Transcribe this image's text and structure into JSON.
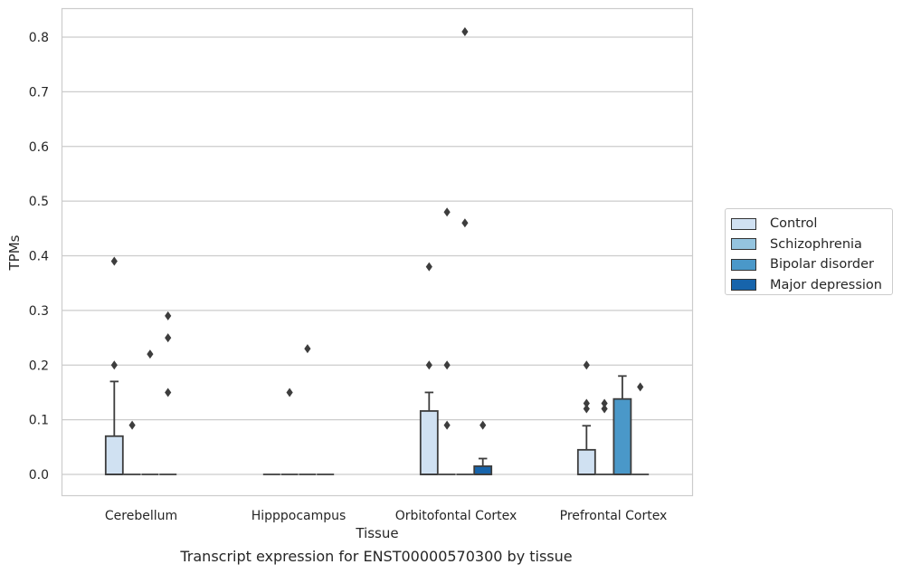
{
  "caption": "Transcript expression for ENST00000570300 by tissue",
  "legend": {
    "items": [
      {
        "label": "Control",
        "color": "#d0e1f2"
      },
      {
        "label": "Schizophrenia",
        "color": "#94c4df"
      },
      {
        "label": "Bipolar disorder",
        "color": "#4a98c9"
      },
      {
        "label": "Major depression",
        "color": "#1764ab"
      }
    ]
  },
  "chart_data": {
    "type": "box",
    "xlabel": "Tissue",
    "ylabel": "TPMs",
    "ylim": [
      -0.04,
      0.85
    ],
    "yticks": [
      0.0,
      0.1,
      0.2,
      0.3,
      0.4,
      0.5,
      0.6,
      0.7,
      0.8
    ],
    "ytick_labels": [
      "0.0",
      "0.1",
      "0.2",
      "0.3",
      "0.4",
      "0.5",
      "0.6",
      "0.7",
      "0.8"
    ],
    "grid": "horizontal",
    "legend_position": "right",
    "categories": [
      "Cerebellum",
      "Hipppocampus",
      "Orbitofontal Cortex",
      "Prefrontal Cortex"
    ],
    "series": [
      {
        "name": "Control",
        "color": "#d0e1f2",
        "boxes": [
          {
            "q1": 0,
            "median": 0,
            "q3": 0.07,
            "whisker_low": 0,
            "whisker_high": 0.17,
            "outliers": [
              0.2,
              0.39
            ]
          },
          {
            "q1": 0,
            "median": 0,
            "q3": 0,
            "whisker_low": 0,
            "whisker_high": 0,
            "outliers": []
          },
          {
            "q1": 0,
            "median": 0,
            "q3": 0.116,
            "whisker_low": 0,
            "whisker_high": 0.15,
            "outliers": [
              0.2,
              0.38
            ]
          },
          {
            "q1": 0,
            "median": 0,
            "q3": 0.045,
            "whisker_low": 0,
            "whisker_high": 0.089,
            "outliers": [
              0.12,
              0.13,
              0.2
            ]
          }
        ]
      },
      {
        "name": "Schizophrenia",
        "color": "#94c4df",
        "boxes": [
          {
            "q1": 0,
            "median": 0,
            "q3": 0,
            "whisker_low": 0,
            "whisker_high": 0,
            "outliers": [
              0.09
            ]
          },
          {
            "q1": 0,
            "median": 0,
            "q3": 0,
            "whisker_low": 0,
            "whisker_high": 0,
            "outliers": [
              0.15
            ]
          },
          {
            "q1": 0,
            "median": 0,
            "q3": 0,
            "whisker_low": 0,
            "whisker_high": 0,
            "outliers": [
              0.09,
              0.2,
              0.48
            ]
          },
          {
            "q1": 0,
            "median": 0,
            "q3": 0,
            "whisker_low": 0,
            "whisker_high": 0,
            "outliers": [
              0.12,
              0.13
            ]
          }
        ]
      },
      {
        "name": "Bipolar disorder",
        "color": "#4a98c9",
        "boxes": [
          {
            "q1": 0,
            "median": 0,
            "q3": 0,
            "whisker_low": 0,
            "whisker_high": 0,
            "outliers": [
              0.22
            ]
          },
          {
            "q1": 0,
            "median": 0,
            "q3": 0,
            "whisker_low": 0,
            "whisker_high": 0,
            "outliers": [
              0.23
            ]
          },
          {
            "q1": 0,
            "median": 0,
            "q3": 0,
            "whisker_low": 0,
            "whisker_high": 0,
            "outliers": [
              0.46,
              0.81
            ]
          },
          {
            "q1": 0,
            "median": 0,
            "q3": 0.138,
            "whisker_low": 0,
            "whisker_high": 0.18,
            "outliers": []
          }
        ]
      },
      {
        "name": "Major depression",
        "color": "#1764ab",
        "boxes": [
          {
            "q1": 0,
            "median": 0,
            "q3": 0,
            "whisker_low": 0,
            "whisker_high": 0,
            "outliers": [
              0.15,
              0.25,
              0.29
            ]
          },
          {
            "q1": 0,
            "median": 0,
            "q3": 0,
            "whisker_low": 0,
            "whisker_high": 0,
            "outliers": []
          },
          {
            "q1": 0,
            "median": 0,
            "q3": 0.015,
            "whisker_low": 0,
            "whisker_high": 0.029,
            "outliers": [
              0.09
            ]
          },
          {
            "q1": 0,
            "median": 0,
            "q3": 0,
            "whisker_low": 0,
            "whisker_high": 0,
            "outliers": [
              0.16
            ]
          }
        ]
      }
    ]
  }
}
